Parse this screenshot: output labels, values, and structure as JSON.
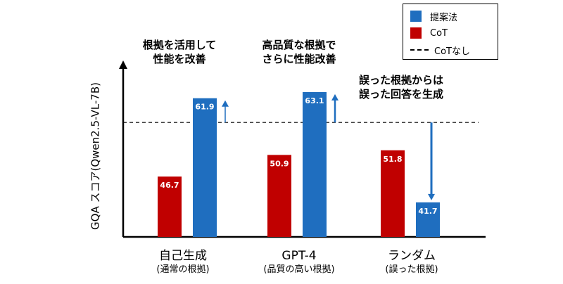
{
  "chart_data": {
    "type": "bar",
    "ylabel": "GQA スコア(Qwen2.5-VL-7B)",
    "ylim": [
      35,
      68
    ],
    "categories": [
      {
        "main": "自己生成",
        "sub": "(通常の根拠)"
      },
      {
        "main": "GPT-4",
        "sub": "(品質の高い根拠)"
      },
      {
        "main": "ランダム",
        "sub": "(誤った根拠)"
      }
    ],
    "series": [
      {
        "name": "CoT",
        "color": "#c00000",
        "values": [
          46.7,
          50.9,
          51.8
        ],
        "labels": [
          "46.7",
          "50.9",
          "51.8"
        ]
      },
      {
        "name": "提案法",
        "color": "#1f6ebf",
        "values": [
          61.9,
          63.1,
          41.7
        ],
        "labels": [
          "61.9",
          "63.1",
          "41.7"
        ]
      }
    ],
    "reference_line": {
      "name": "CoTなし",
      "value": 57.2
    },
    "legend": {
      "placement": "top-right"
    },
    "annotations": [
      {
        "lines": [
          "根拠を活用して",
          "性能を改善"
        ]
      },
      {
        "lines": [
          "高品質な根拠で",
          "さらに性能改善"
        ]
      },
      {
        "lines": [
          "誤った根拠からは",
          "誤った回答を生成"
        ]
      }
    ]
  }
}
